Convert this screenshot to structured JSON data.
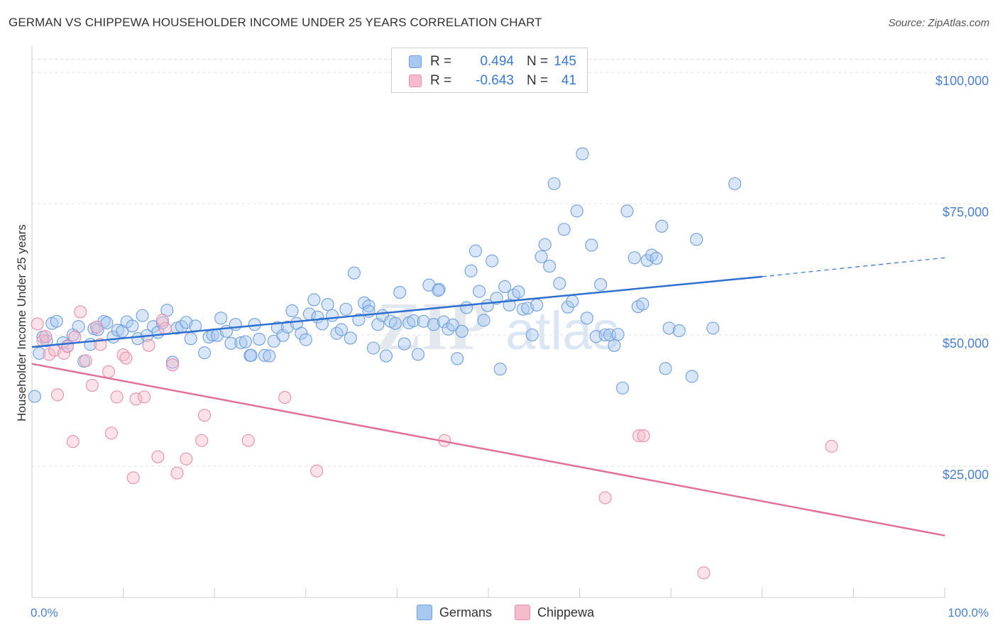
{
  "header": {
    "title": "GERMAN VS CHIPPEWA HOUSEHOLDER INCOME UNDER 25 YEARS CORRELATION CHART",
    "source": "Source: ZipAtlas.com"
  },
  "legend_top": {
    "rows": [
      {
        "r_label": "R =",
        "r_value": "0.494",
        "n_label": "N =",
        "n_value": "145"
      },
      {
        "r_label": "R =",
        "r_value": "-0.643",
        "n_label": "N =",
        "n_value": "41"
      }
    ]
  },
  "legend_bottom": {
    "items": [
      {
        "label": "Germans"
      },
      {
        "label": "Chippewa"
      }
    ]
  },
  "watermark": {
    "zip": "ZIP",
    "atlas": "atlas"
  },
  "colors": {
    "german_fill": "#a9c8f0",
    "german_stroke": "#6f9fdc",
    "german_line": "#2f6fcf",
    "chippewa_fill": "#f6bccd",
    "chippewa_stroke": "#e98fac",
    "chippewa_line": "#e0709a",
    "tick_label": "#4a7fd0",
    "grid": "#dddddd"
  },
  "chart_data": {
    "type": "scatter",
    "title": "GERMAN VS CHIPPEWA HOUSEHOLDER INCOME UNDER 25 YEARS CORRELATION CHART",
    "xlabel": "",
    "ylabel": "Householder Income Under 25 years",
    "xlim": [
      0,
      100
    ],
    "ylim": [
      0,
      105000
    ],
    "x_tick_labels": [
      "0.0%",
      "100.0%"
    ],
    "y_ticks": [
      {
        "value": 25000,
        "label": "$25,000"
      },
      {
        "value": 50000,
        "label": "$50,000"
      },
      {
        "value": 75000,
        "label": "$75,000"
      },
      {
        "value": 100000,
        "label": "$100,000"
      }
    ],
    "grid": true,
    "legend_placement": "top-center and bottom",
    "series": [
      {
        "name": "Germans",
        "r": 0.494,
        "n": 145,
        "trend": {
          "x0": 0,
          "y0": 47700,
          "x1": 80,
          "y1": 61100,
          "dash_x1": 100,
          "dash_y1": 64700
        },
        "points": [
          [
            0.3,
            38300
          ],
          [
            0.8,
            46500
          ],
          [
            1.2,
            49600
          ],
          [
            1.6,
            48900
          ],
          [
            2.2,
            52200
          ],
          [
            2.7,
            52600
          ],
          [
            3.4,
            48500
          ],
          [
            3.9,
            47900
          ],
          [
            4.5,
            50000
          ],
          [
            5.1,
            51600
          ],
          [
            5.7,
            45000
          ],
          [
            6.4,
            48200
          ],
          [
            6.8,
            51200
          ],
          [
            7.2,
            51000
          ],
          [
            7.9,
            52600
          ],
          [
            8.2,
            52300
          ],
          [
            8.9,
            49600
          ],
          [
            9.4,
            50900
          ],
          [
            9.9,
            50700
          ],
          [
            10.4,
            52500
          ],
          [
            11.0,
            51700
          ],
          [
            11.6,
            49300
          ],
          [
            12.1,
            53700
          ],
          [
            12.6,
            49900
          ],
          [
            13.3,
            51600
          ],
          [
            13.8,
            50500
          ],
          [
            14.3,
            52300
          ],
          [
            14.8,
            54700
          ],
          [
            15.4,
            44800
          ],
          [
            15.9,
            51300
          ],
          [
            16.4,
            51600
          ],
          [
            16.9,
            52400
          ],
          [
            17.4,
            49300
          ],
          [
            17.9,
            51700
          ],
          [
            18.9,
            46600
          ],
          [
            19.4,
            49600
          ],
          [
            19.8,
            50000
          ],
          [
            20.3,
            49900
          ],
          [
            20.7,
            53200
          ],
          [
            21.3,
            50700
          ],
          [
            21.8,
            48400
          ],
          [
            22.3,
            52000
          ],
          [
            22.9,
            48500
          ],
          [
            23.4,
            48700
          ],
          [
            23.9,
            46100
          ],
          [
            24.4,
            52000
          ],
          [
            24.9,
            49200
          ],
          [
            25.5,
            46100
          ],
          [
            26.0,
            46000
          ],
          [
            26.5,
            48800
          ],
          [
            26.9,
            51400
          ],
          [
            27.5,
            49900
          ],
          [
            28.0,
            51500
          ],
          [
            28.5,
            54600
          ],
          [
            29.0,
            52200
          ],
          [
            29.5,
            50300
          ],
          [
            30.0,
            49100
          ],
          [
            30.4,
            54000
          ],
          [
            30.9,
            56700
          ],
          [
            31.3,
            53400
          ],
          [
            31.8,
            52100
          ],
          [
            32.4,
            55800
          ],
          [
            32.9,
            53700
          ],
          [
            33.4,
            50300
          ],
          [
            33.9,
            51000
          ],
          [
            34.4,
            54900
          ],
          [
            34.9,
            49400
          ],
          [
            35.3,
            61800
          ],
          [
            35.8,
            52900
          ],
          [
            36.4,
            56100
          ],
          [
            36.9,
            55500
          ],
          [
            37.4,
            47500
          ],
          [
            37.9,
            52000
          ],
          [
            38.4,
            53700
          ],
          [
            38.8,
            46000
          ],
          [
            39.3,
            52600
          ],
          [
            39.8,
            52200
          ],
          [
            40.3,
            58100
          ],
          [
            40.8,
            48300
          ],
          [
            41.3,
            52300
          ],
          [
            41.8,
            52700
          ],
          [
            42.3,
            46300
          ],
          [
            42.9,
            52600
          ],
          [
            43.5,
            59500
          ],
          [
            44.0,
            52000
          ],
          [
            44.6,
            58700
          ],
          [
            45.1,
            52500
          ],
          [
            45.6,
            51100
          ],
          [
            46.1,
            51900
          ],
          [
            46.6,
            45500
          ],
          [
            47.1,
            50700
          ],
          [
            47.6,
            55200
          ],
          [
            48.1,
            62200
          ],
          [
            48.6,
            66000
          ],
          [
            49.0,
            58300
          ],
          [
            49.5,
            52800
          ],
          [
            49.9,
            55600
          ],
          [
            50.4,
            64100
          ],
          [
            50.9,
            57000
          ],
          [
            51.3,
            43500
          ],
          [
            51.8,
            59200
          ],
          [
            52.3,
            55700
          ],
          [
            52.8,
            57600
          ],
          [
            53.3,
            58200
          ],
          [
            53.8,
            54900
          ],
          [
            54.3,
            55100
          ],
          [
            54.8,
            50000
          ],
          [
            55.3,
            55700
          ],
          [
            55.8,
            64900
          ],
          [
            56.2,
            67200
          ],
          [
            56.7,
            63100
          ],
          [
            57.2,
            78800
          ],
          [
            57.8,
            59800
          ],
          [
            58.3,
            70100
          ],
          [
            58.7,
            55300
          ],
          [
            59.2,
            56400
          ],
          [
            59.7,
            73600
          ],
          [
            60.3,
            84500
          ],
          [
            60.8,
            53200
          ],
          [
            61.3,
            67100
          ],
          [
            61.8,
            49700
          ],
          [
            62.3,
            59600
          ],
          [
            62.8,
            50000
          ],
          [
            63.3,
            50000
          ],
          [
            63.8,
            48000
          ],
          [
            64.2,
            50100
          ],
          [
            64.7,
            39900
          ],
          [
            65.2,
            73600
          ],
          [
            66.0,
            64700
          ],
          [
            66.4,
            55400
          ],
          [
            66.9,
            55900
          ],
          [
            67.4,
            64200
          ],
          [
            67.9,
            65200
          ],
          [
            68.4,
            64600
          ],
          [
            69.0,
            70700
          ],
          [
            69.4,
            43600
          ],
          [
            69.8,
            51300
          ],
          [
            70.9,
            50800
          ],
          [
            72.3,
            42100
          ],
          [
            72.8,
            68200
          ],
          [
            74.6,
            51300
          ],
          [
            77.0,
            78800
          ],
          [
            24.0,
            46100
          ],
          [
            36.9,
            54500
          ],
          [
            44.5,
            58500
          ]
        ]
      },
      {
        "name": "Chippewa",
        "r": -0.643,
        "n": 41,
        "trend": {
          "x0": 0,
          "y0": 44500,
          "x1": 100,
          "y1": 11800
        },
        "points": [
          [
            0.6,
            52100
          ],
          [
            1.2,
            48900
          ],
          [
            1.5,
            49700
          ],
          [
            1.9,
            46300
          ],
          [
            2.5,
            47100
          ],
          [
            2.8,
            38600
          ],
          [
            3.5,
            46500
          ],
          [
            3.9,
            47800
          ],
          [
            4.5,
            29700
          ],
          [
            4.7,
            49600
          ],
          [
            5.3,
            54400
          ],
          [
            5.9,
            45100
          ],
          [
            6.6,
            40400
          ],
          [
            7.5,
            48200
          ],
          [
            8.4,
            43000
          ],
          [
            8.7,
            31300
          ],
          [
            9.3,
            38200
          ],
          [
            10.0,
            46200
          ],
          [
            10.3,
            45600
          ],
          [
            11.1,
            22800
          ],
          [
            11.4,
            37800
          ],
          [
            12.3,
            38200
          ],
          [
            12.8,
            48000
          ],
          [
            13.8,
            26800
          ],
          [
            14.3,
            52800
          ],
          [
            15.4,
            44300
          ],
          [
            15.9,
            23700
          ],
          [
            16.9,
            26400
          ],
          [
            18.6,
            29900
          ],
          [
            18.9,
            34700
          ],
          [
            23.7,
            29900
          ],
          [
            27.7,
            38100
          ],
          [
            31.2,
            24100
          ],
          [
            45.2,
            29900
          ],
          [
            62.8,
            19000
          ],
          [
            66.5,
            30800
          ],
          [
            67.0,
            30800
          ],
          [
            87.6,
            28800
          ],
          [
            73.6,
            4700
          ],
          [
            14.6,
            51200
          ],
          [
            7.1,
            51500
          ]
        ]
      }
    ]
  }
}
